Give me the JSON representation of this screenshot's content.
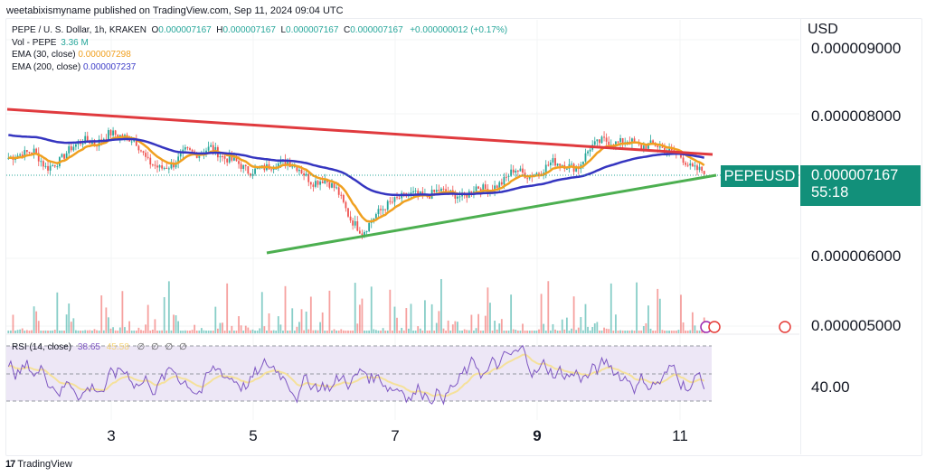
{
  "publisher_line": "weetabixismyname published on TradingView.com, Sep 11, 2024 09:04 UTC",
  "legend": {
    "symbol_desc": "PEPE / U. S. Dollar, 1h, KRAKEN",
    "open_label": "O",
    "open": "0.000007167",
    "high_label": "H",
    "high": "0.000007167",
    "low_label": "L",
    "low": "0.000007167",
    "close_label": "C",
    "close": "0.000007167",
    "change": "+0.000000012 (+0.17%)",
    "vol_label": "Vol - PEPE",
    "vol": "3.36 M",
    "ema30_label": "EMA (30, close)",
    "ema30": "0.000007298",
    "ema200_label": "EMA (200, close)",
    "ema200": "0.000007237"
  },
  "price_axis": {
    "currency": "USD",
    "ticks": [
      "0.000009000",
      "0.000008000",
      "0.000006000",
      "0.000005000"
    ],
    "rsi_tick": "40.00"
  },
  "price_tag": {
    "symbol": "PEPEUSD",
    "price": "0.000007167",
    "countdown": "55:18"
  },
  "rsi_legend": {
    "label": "RSI (14, close)",
    "value": "38.65",
    "ma_value": "45.58",
    "nulls": "∅ ∅ ∅ ∅"
  },
  "x_axis": [
    {
      "label": "3",
      "bold": false
    },
    {
      "label": "5",
      "bold": false
    },
    {
      "label": "7",
      "bold": false
    },
    {
      "label": "9",
      "bold": true
    },
    {
      "label": "11",
      "bold": false
    }
  ],
  "footer": {
    "logo": "17",
    "brand": "TradingView"
  },
  "colors": {
    "up": "#26a69a",
    "down": "#ef5350",
    "ema30": "#f0a020",
    "ema200": "#3535c0",
    "resistance": "#e03a3e",
    "support": "#4caf50",
    "rsi": "#7e57c2",
    "rsi_ma": "#f5e19a",
    "rsi_band": "#ede7f6",
    "tag": "#12907a"
  },
  "chart_data": {
    "type": "candlestick",
    "title": "PEPE / U. S. Dollar, 1h, KRAKEN",
    "x_ticks": [
      "3",
      "5",
      "7",
      "9",
      "11"
    ],
    "y_ticks": [
      9e-06,
      8e-06,
      6e-06,
      5e-06
    ],
    "ylim": [
      4.8e-06,
      9.3e-06
    ],
    "last_price": 7.167e-06,
    "close_series_approx": [
      7.35,
      7.4,
      7.45,
      7.2,
      7.3,
      7.5,
      7.6,
      7.55,
      7.7,
      7.65,
      7.6,
      7.3,
      7.2,
      7.25,
      7.45,
      7.4,
      7.5,
      7.35,
      7.3,
      7.15,
      7.2,
      7.25,
      7.3,
      7.2,
      7.0,
      7.05,
      6.9,
      6.5,
      6.3,
      6.55,
      6.7,
      6.8,
      6.85,
      6.8,
      6.9,
      6.85,
      6.8,
      6.95,
      6.9,
      7.0,
      7.2,
      7.1,
      7.15,
      7.3,
      7.25,
      7.2,
      7.5,
      7.6,
      7.55,
      7.6,
      7.5,
      7.55,
      7.45,
      7.4,
      7.2,
      7.17
    ],
    "close_series_unit": "1e-6 USD",
    "indicators": [
      {
        "name": "EMA (30, close)",
        "last": 7.298e-06
      },
      {
        "name": "EMA (200, close)",
        "last": 7.237e-06
      },
      {
        "name": "Volume",
        "last": "3.36 M"
      },
      {
        "name": "RSI (14, close)",
        "last": 38.65,
        "ma": 45.58,
        "band_labels": [
          "40.00"
        ]
      }
    ],
    "trendlines": [
      {
        "name": "descending resistance",
        "color": "red",
        "from": [
          0,
          8.1e-06
        ],
        "to": [
          1,
          7.4e-06
        ]
      },
      {
        "name": "ascending support",
        "color": "green",
        "from": [
          0.35,
          6.1e-06
        ],
        "to": [
          1,
          7.1e-06
        ]
      }
    ]
  }
}
